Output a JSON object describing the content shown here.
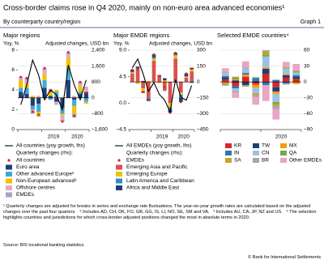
{
  "header": {
    "title": "Cross-border claims rose in Q4 2020, mainly on non-euro area advanced economies¹",
    "subtitle": "By counterparty country/region",
    "graph_label": "Graph 1"
  },
  "chart_data": [
    {
      "type": "stacked_bar_line",
      "title": "Major regions",
      "y_label": "Yoy, %",
      "y2_label": "Adjusted changes, USD bn",
      "categories": [
        null,
        null,
        null,
        null,
        null,
        null,
        null,
        null,
        null,
        null,
        null,
        null
      ],
      "year_labels": [
        "2019",
        "2020"
      ],
      "ylim": [
        0,
        8
      ],
      "yticks": [
        0,
        2,
        4,
        6,
        8
      ],
      "y2lim": [
        -1600,
        2400
      ],
      "y2ticks": [
        {
          "value": -1600,
          "label": "–1,600"
        },
        {
          "value": -800,
          "label": "–800"
        },
        0,
        800,
        {
          "value": 1600,
          "label": "1,600"
        },
        {
          "value": 2400,
          "label": "2,400"
        }
      ],
      "grid": true,
      "line": {
        "name": "All countries (yoy growth, lhs)",
        "color": "#000000",
        "values": [
          2.5,
          4.5,
          7.0,
          5.5,
          3.0,
          4.0,
          3.5,
          2.0,
          6.5,
          4.5,
          3.0,
          5.0
        ]
      },
      "legend_heading": "Quarterly changes (rhs):",
      "total": {
        "name": "All countries",
        "color": "#e2231a",
        "values": [
          1050,
          1000,
          -700,
          -850,
          1500,
          350,
          50,
          -1200,
          2300,
          -900,
          800,
          250
        ]
      },
      "series": [
        {
          "name": "Euro area",
          "color": "#1f3f77",
          "axis": "y2",
          "values": [
            300,
            200,
            -400,
            -300,
            500,
            100,
            -200,
            -500,
            900,
            -100,
            200,
            300
          ]
        },
        {
          "name": "Other advanced Europe²",
          "color": "#3fa9d6",
          "axis": "y2",
          "values": [
            200,
            300,
            -200,
            -400,
            400,
            -100,
            300,
            -300,
            600,
            -300,
            100,
            -200
          ]
        },
        {
          "name": "Non-European advanced³",
          "color": "#f2c200",
          "axis": "y2",
          "values": [
            400,
            200,
            100,
            -200,
            300,
            200,
            100,
            -100,
            500,
            -400,
            300,
            -100
          ]
        },
        {
          "name": "Offshore centres",
          "color": "#e7a6c8",
          "axis": "y2",
          "values": [
            100,
            200,
            -100,
            100,
            200,
            100,
            -100,
            -200,
            200,
            100,
            100,
            200
          ]
        },
        {
          "name": "EMDEs",
          "color": "#9fa6c9",
          "axis": "y2",
          "values": [
            50,
            100,
            -100,
            -50,
            100,
            50,
            -50,
            -100,
            100,
            -200,
            100,
            50
          ]
        }
      ]
    },
    {
      "type": "stacked_bar_line",
      "title": "Major EMDE regions",
      "y_label": "Yoy, %",
      "y2_label": "Adjusted changes, USD bn",
      "categories": [
        null,
        null,
        null,
        null,
        null,
        null,
        null,
        null,
        null,
        null,
        null,
        null
      ],
      "year_labels": [
        "2019",
        "2020"
      ],
      "ylim": [
        -4.5,
        9
      ],
      "yticks": [
        {
          "value": -4.5,
          "label": "–4.5"
        },
        {
          "value": 0,
          "label": "0.0"
        },
        4.5,
        {
          "value": 9,
          "label": "9.0"
        }
      ],
      "y2lim": [
        -450,
        300
      ],
      "y2ticks": [
        {
          "value": -450,
          "label": "–450"
        },
        {
          "value": -300,
          "label": "–300"
        },
        {
          "value": -150,
          "label": "–150"
        },
        0,
        150,
        300
      ],
      "grid": true,
      "line": {
        "name": "All EMDEs (yoy growth, lhs)",
        "color": "#000000",
        "values": [
          6.0,
          7.5,
          5.0,
          2.0,
          3.5,
          1.5,
          0.5,
          -1.5,
          4.0,
          1.0,
          0.5,
          3.0
        ]
      },
      "legend_heading": "Quarterly changes (rhs):",
      "total": {
        "name": "EMDEs",
        "color": "#e2231a",
        "values": [
          115,
          125,
          -95,
          -170,
          260,
          55,
          -50,
          -290,
          275,
          -190,
          80,
          125
        ]
      },
      "series": [
        {
          "name": "Emerging Asia and Pacific",
          "color": "#d9534f",
          "axis": "y2",
          "values": [
            80,
            120,
            -60,
            -150,
            200,
            50,
            -80,
            -200,
            220,
            -100,
            40,
            100
          ]
        },
        {
          "name": "Emerging Europe",
          "color": "#f2c200",
          "axis": "y2",
          "values": [
            10,
            -20,
            -30,
            10,
            20,
            -10,
            15,
            -40,
            30,
            -20,
            10,
            20
          ]
        },
        {
          "name": "Latin America and Caribbean",
          "color": "#2e8bcc",
          "axis": "y2",
          "values": [
            5,
            10,
            -15,
            -10,
            15,
            5,
            -5,
            -20,
            10,
            -30,
            5,
            -10
          ]
        },
        {
          "name": "Africa and Middle East",
          "color": "#1f3f77",
          "axis": "y2",
          "values": [
            20,
            15,
            10,
            -20,
            25,
            10,
            20,
            -30,
            15,
            -40,
            25,
            15
          ]
        }
      ]
    },
    {
      "type": "stacked_bar",
      "title": "Selected EMDE countries⁴",
      "categories": [
        null,
        null,
        null,
        null,
        null,
        null,
        null,
        null
      ],
      "year_labels": [
        "2020"
      ],
      "y2lim": [
        -90,
        60
      ],
      "y2ticks": [
        {
          "value": -90,
          "label": "–90"
        },
        {
          "value": -60,
          "label": "–60"
        },
        {
          "value": -30,
          "label": "–30"
        },
        0,
        30,
        60
      ],
      "grid": true,
      "series": [
        {
          "name": "KR",
          "color": "#d62728",
          "axis": "y2",
          "values": [
            5,
            -8,
            10,
            -5,
            15,
            -10,
            8,
            6
          ]
        },
        {
          "name": "TW",
          "color": "#1f3f77",
          "axis": "y2",
          "values": [
            4,
            3,
            -6,
            2,
            10,
            -8,
            5,
            4
          ]
        },
        {
          "name": "MX",
          "color": "#f39c12",
          "axis": "y2",
          "values": [
            -3,
            2,
            4,
            -6,
            3,
            -5,
            2,
            -4
          ]
        },
        {
          "name": "IN",
          "color": "#2e75b6",
          "axis": "y2",
          "values": [
            2,
            -4,
            3,
            5,
            -6,
            4,
            -3,
            3
          ]
        },
        {
          "name": "CN",
          "color": "#9bc2e6",
          "axis": "y2",
          "values": [
            6,
            -5,
            8,
            -10,
            20,
            -15,
            10,
            5
          ]
        },
        {
          "name": "QA",
          "color": "#70ad47",
          "axis": "y2",
          "values": [
            -2,
            3,
            -1,
            2,
            4,
            -3,
            1,
            2
          ]
        },
        {
          "name": "SA",
          "color": "#c9a227",
          "axis": "y2",
          "values": [
            1,
            2,
            -2,
            -3,
            5,
            -4,
            2,
            1
          ]
        },
        {
          "name": "BR",
          "color": "#a6a6a6",
          "axis": "y2",
          "values": [
            -2,
            -3,
            2,
            -4,
            3,
            -6,
            -2,
            1
          ]
        },
        {
          "name": "Other EMDEs",
          "color": "#e7a6c8",
          "axis": "y2",
          "values": [
            8,
            -10,
            12,
            -15,
            -30,
            -20,
            10,
            12
          ]
        }
      ]
    }
  ],
  "footnotes": [
    "¹ Quarterly changes are adjusted for breaks in series and exchange rate fluctuations. The year-on-year growth rates are calculated based on the adjusted changes over the past four quarters.",
    "² Includes AD, CH, DK, FO, GB, GG, IS, LI, NO, SE, SM and VA.",
    "³ Includes AU, CA, JP, NZ and US.",
    "⁴ The selection highlights countries and jurisdictions for which cross-border adjusted positions changed the most in absolute terms in 2020."
  ],
  "source": "Source: BIS locational banking statistics.",
  "copyright": "© Bank for International Settlements"
}
